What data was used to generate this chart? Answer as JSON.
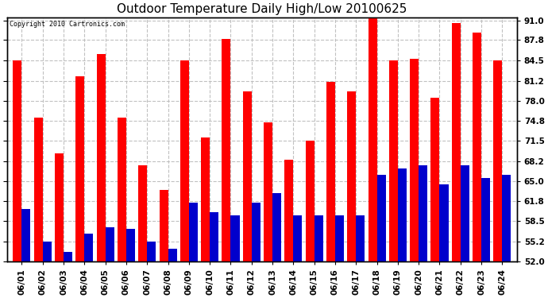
{
  "title": "Outdoor Temperature Daily High/Low 20100625",
  "copyright": "Copyright 2010 Cartronics.com",
  "dates": [
    "06/01",
    "06/02",
    "06/03",
    "06/04",
    "06/05",
    "06/06",
    "06/07",
    "06/08",
    "06/09",
    "06/10",
    "06/11",
    "06/12",
    "06/13",
    "06/14",
    "06/15",
    "06/16",
    "06/17",
    "06/18",
    "06/19",
    "06/20",
    "06/21",
    "06/22",
    "06/23",
    "06/24"
  ],
  "highs": [
    84.5,
    75.2,
    69.5,
    82.0,
    85.5,
    75.2,
    67.5,
    63.5,
    84.5,
    72.0,
    88.0,
    79.5,
    74.5,
    68.5,
    71.5,
    81.0,
    79.5,
    91.5,
    84.5,
    84.8,
    78.5,
    90.5,
    89.0,
    84.5
  ],
  "lows": [
    60.5,
    55.2,
    53.5,
    56.5,
    57.5,
    57.2,
    55.2,
    54.0,
    61.5,
    60.0,
    59.5,
    61.5,
    63.0,
    59.5,
    59.5,
    59.5,
    59.5,
    66.0,
    67.0,
    67.5,
    64.5,
    67.5,
    65.5,
    66.0
  ],
  "high_color": "#ff0000",
  "low_color": "#0000cc",
  "background_color": "#ffffff",
  "plot_bg_color": "#ffffff",
  "grid_color": "#bbbbbb",
  "y_min": 52.0,
  "y_max": 91.5,
  "y_ticks": [
    52.0,
    55.2,
    58.5,
    61.8,
    65.0,
    68.2,
    71.5,
    74.8,
    78.0,
    81.2,
    84.5,
    87.8,
    91.0
  ],
  "bar_width": 0.42,
  "title_fontsize": 11,
  "tick_fontsize": 7.5,
  "label_color": "#000000",
  "label_fontweight": "bold"
}
